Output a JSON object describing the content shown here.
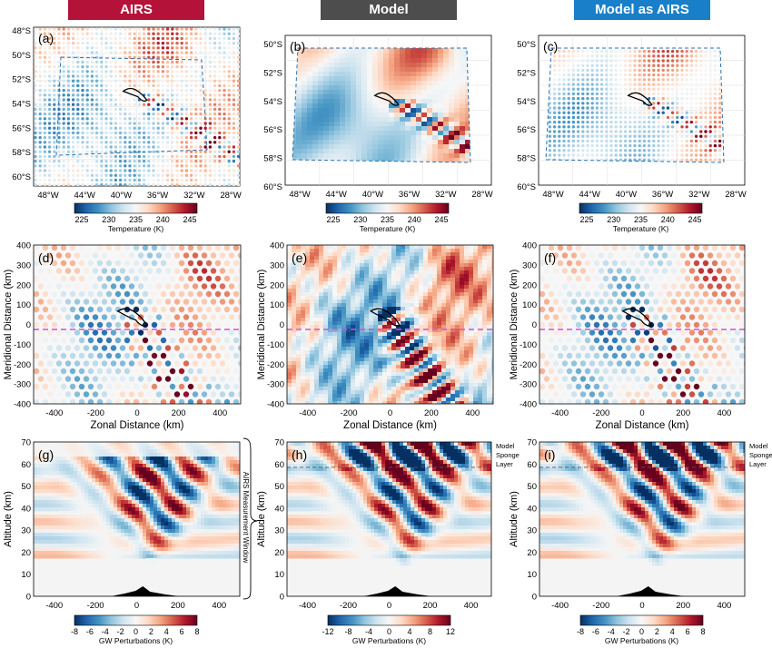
{
  "headers": [
    {
      "label": "AIRS",
      "color": "#b5123a"
    },
    {
      "label": "Model",
      "color": "#4d4d4d"
    },
    {
      "label": "Model as AIRS",
      "color": "#1a7fc9"
    }
  ],
  "panel_labels": [
    "(a)",
    "(b)",
    "(c)",
    "(d)",
    "(e)",
    "(f)",
    "(g)",
    "(h)",
    "(i)"
  ],
  "row1": {
    "lat_ticks_a": [
      "48°S",
      "50°S",
      "52°S",
      "54°S",
      "56°S",
      "58°S",
      "60°S"
    ],
    "lat_ticks_bc": [
      "50°S",
      "52°S",
      "54°S",
      "56°S",
      "58°S",
      "60°S"
    ],
    "lon_ticks": [
      "48°W",
      "44°W",
      "40°W",
      "36°W",
      "32°W",
      "28°W"
    ],
    "colorbar_ticks": [
      "225",
      "230",
      "235",
      "240",
      "245"
    ],
    "colorbar_label": "Temperature (K)"
  },
  "row2": {
    "y_ticks": [
      "400",
      "300",
      "200",
      "100",
      "0",
      "-100",
      "-200",
      "-300",
      "-400"
    ],
    "x_ticks": [
      "-400",
      "-200",
      "0",
      "200",
      "400"
    ],
    "ylabel": "Meridional Distance (km)",
    "xlabel": "Zonal Distance (km)"
  },
  "row3": {
    "y_ticks": [
      "70",
      "60",
      "50",
      "40",
      "30",
      "20",
      "10",
      "0"
    ],
    "x_ticks": [
      "-400",
      "-200",
      "0",
      "200",
      "400"
    ],
    "ylabel": "Altitude (km)",
    "sponge_label": [
      "Model",
      "Sponge",
      "Layer"
    ],
    "window_label": "AIRS Measurement Window",
    "cb_ticks_airs": [
      "-8",
      "-6",
      "-4",
      "-2",
      "0",
      "2",
      "4",
      "6",
      "8"
    ],
    "cb_ticks_model": [
      "-12",
      "-8",
      "-4",
      "0",
      "4",
      "8",
      "12"
    ],
    "cb_label": "GW Perturbations (K)"
  },
  "chart_data": [
    {
      "type": "heatmap",
      "panel": "(a)",
      "title": "AIRS",
      "xlabel": "",
      "ylabel": "",
      "xlim": [
        -50,
        -25
      ],
      "ylim": [
        -61,
        -48
      ],
      "colorbar": {
        "label": "Temperature (K)",
        "range": [
          222,
          248
        ],
        "ticks": [
          225,
          230,
          235,
          240,
          245
        ]
      }
    },
    {
      "type": "heatmap",
      "panel": "(b)",
      "title": "Model",
      "xlim": [
        -50,
        -25
      ],
      "ylim": [
        -60,
        -49
      ],
      "colorbar": {
        "label": "Temperature (K)",
        "range": [
          222,
          248
        ],
        "ticks": [
          225,
          230,
          235,
          240,
          245
        ]
      }
    },
    {
      "type": "heatmap",
      "panel": "(c)",
      "title": "Model as AIRS",
      "xlim": [
        -50,
        -25
      ],
      "ylim": [
        -60,
        -49
      ],
      "colorbar": {
        "label": "Temperature (K)",
        "range": [
          222,
          248
        ],
        "ticks": [
          225,
          230,
          235,
          240,
          245
        ]
      }
    },
    {
      "type": "scatter",
      "panel": "(d)",
      "xlabel": "Zonal Distance (km)",
      "ylabel": "Meridional Distance (km)",
      "xlim": [
        -500,
        500
      ],
      "ylim": [
        -400,
        400
      ]
    },
    {
      "type": "heatmap",
      "panel": "(e)",
      "xlabel": "Zonal Distance (km)",
      "ylabel": "Meridional Distance (km)",
      "xlim": [
        -500,
        500
      ],
      "ylim": [
        -400,
        400
      ]
    },
    {
      "type": "scatter",
      "panel": "(f)",
      "xlabel": "Zonal Distance (km)",
      "ylabel": "Meridional Distance (km)",
      "xlim": [
        -500,
        500
      ],
      "ylim": [
        -400,
        400
      ]
    },
    {
      "type": "heatmap",
      "panel": "(g)",
      "ylabel": "Altitude (km)",
      "xlim": [
        -500,
        500
      ],
      "ylim": [
        0,
        70
      ],
      "colorbar": {
        "label": "GW Perturbations (K)",
        "range": [
          -8,
          8
        ]
      },
      "annotations": [
        "AIRS Measurement Window"
      ]
    },
    {
      "type": "heatmap",
      "panel": "(h)",
      "ylabel": "Altitude (km)",
      "xlim": [
        -500,
        500
      ],
      "ylim": [
        0,
        70
      ],
      "colorbar": {
        "label": "GW Perturbations (K)",
        "range": [
          -12,
          12
        ]
      },
      "annotations": [
        "Model Sponge Layer"
      ],
      "sponge_altitude_km": 58
    },
    {
      "type": "heatmap",
      "panel": "(i)",
      "ylabel": "Altitude (km)",
      "xlim": [
        -500,
        500
      ],
      "ylim": [
        0,
        70
      ],
      "colorbar": {
        "label": "GW Perturbations (K)",
        "range": [
          -8,
          8
        ]
      },
      "annotations": [
        "Model Sponge Layer"
      ],
      "sponge_altitude_km": 58
    }
  ]
}
